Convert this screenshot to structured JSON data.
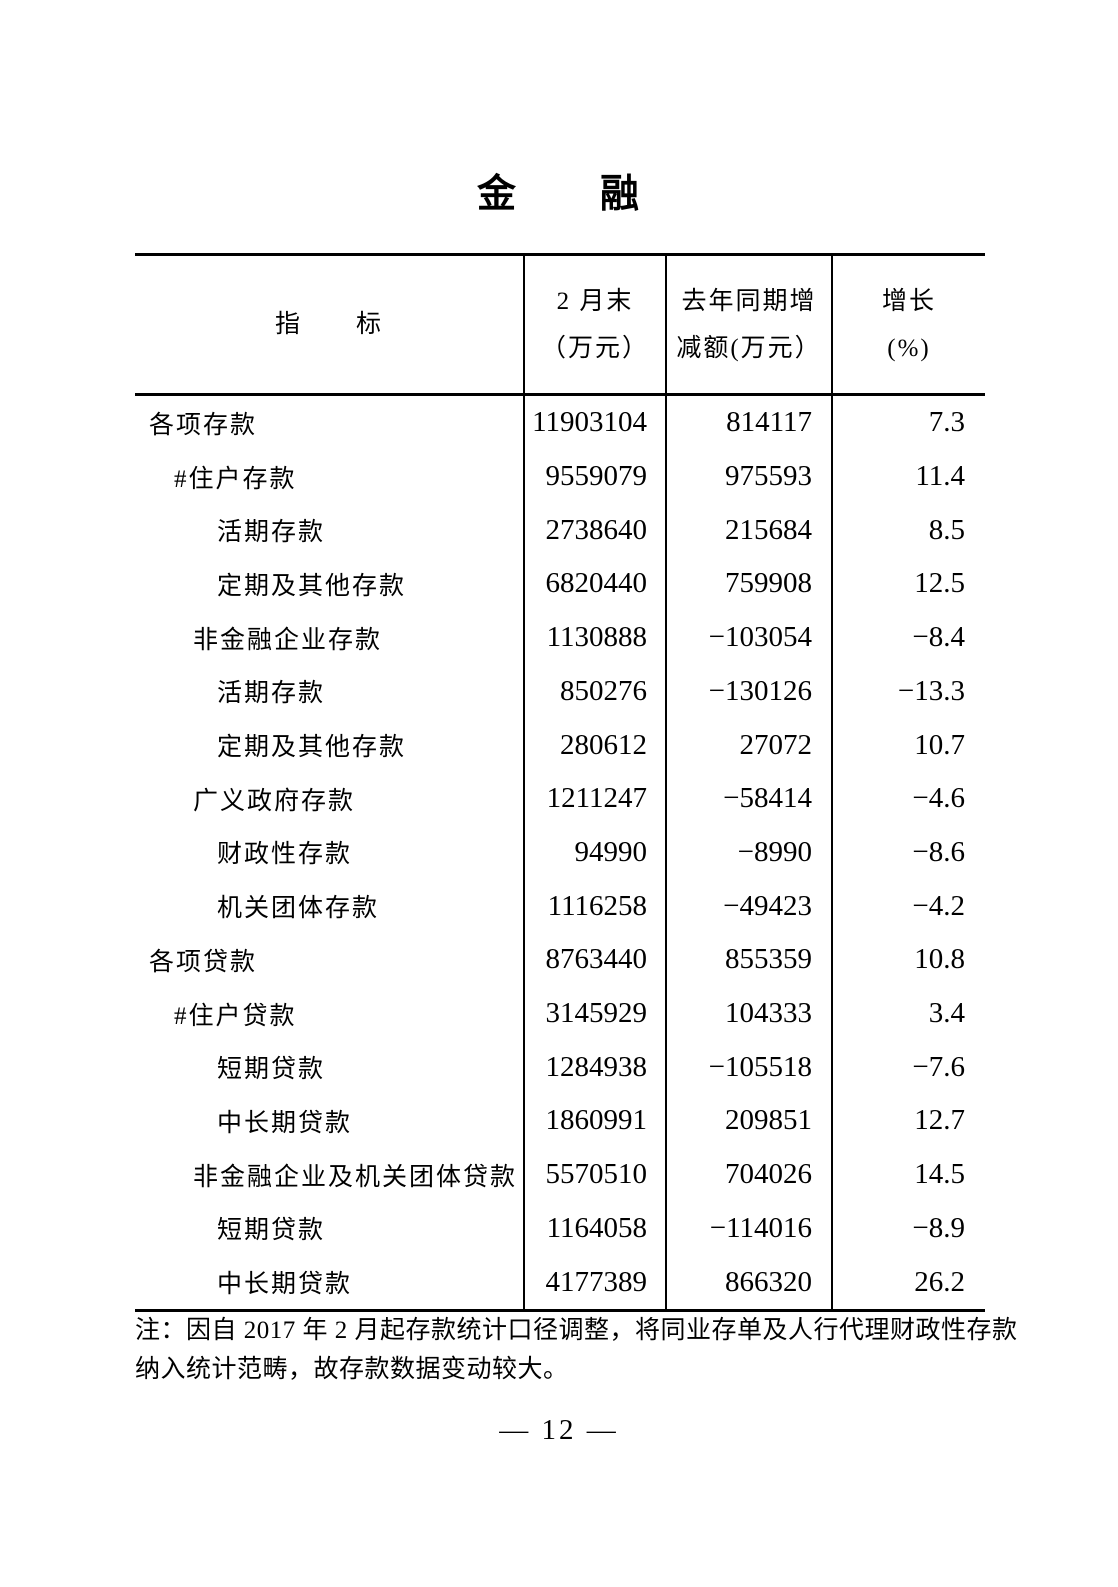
{
  "page": {
    "title": "金　　融",
    "page_number": "— 12 —"
  },
  "table": {
    "header": {
      "indicator": "指　　标",
      "col2": [
        "2 月末",
        "（万元）"
      ],
      "col3": [
        "去年同期增",
        "减额(万元）"
      ],
      "col4": [
        "增长",
        "(%)"
      ]
    },
    "rows": [
      {
        "indicator": "各项存款",
        "indent": 0,
        "value": "11903104",
        "change": "814117",
        "growth": "7.3"
      },
      {
        "indicator": "#住户存款",
        "indent": 1,
        "value": "9559079",
        "change": "975593",
        "growth": "11.4"
      },
      {
        "indicator": "活期存款",
        "indent": 3,
        "value": "2738640",
        "change": "215684",
        "growth": "8.5"
      },
      {
        "indicator": "定期及其他存款",
        "indent": 3,
        "value": "6820440",
        "change": "759908",
        "growth": "12.5"
      },
      {
        "indicator": "非金融企业存款",
        "indent": 2,
        "value": "1130888",
        "change": "−103054",
        "growth": "−8.4"
      },
      {
        "indicator": "活期存款",
        "indent": 3,
        "value": "850276",
        "change": "−130126",
        "growth": "−13.3"
      },
      {
        "indicator": "定期及其他存款",
        "indent": 3,
        "value": "280612",
        "change": "27072",
        "growth": "10.7"
      },
      {
        "indicator": "广义政府存款",
        "indent": 2,
        "value": "1211247",
        "change": "−58414",
        "growth": "−4.6"
      },
      {
        "indicator": "财政性存款",
        "indent": 3,
        "value": "94990",
        "change": "−8990",
        "growth": "−8.6"
      },
      {
        "indicator": "机关团体存款",
        "indent": 3,
        "value": "1116258",
        "change": "−49423",
        "growth": "−4.2"
      },
      {
        "indicator": "各项贷款",
        "indent": 0,
        "value": "8763440",
        "change": "855359",
        "growth": "10.8"
      },
      {
        "indicator": "#住户贷款",
        "indent": 1,
        "value": "3145929",
        "change": "104333",
        "growth": "3.4"
      },
      {
        "indicator": "短期贷款",
        "indent": 3,
        "value": "1284938",
        "change": "−105518",
        "growth": "−7.6"
      },
      {
        "indicator": "中长期贷款",
        "indent": 3,
        "value": "1860991",
        "change": "209851",
        "growth": "12.7"
      },
      {
        "indicator": "非金融企业及机关团体贷款",
        "indent": 2,
        "value": "5570510",
        "change": "704026",
        "growth": "14.5"
      },
      {
        "indicator": "短期贷款",
        "indent": 3,
        "value": "1164058",
        "change": "−114016",
        "growth": "−8.9"
      },
      {
        "indicator": "中长期贷款",
        "indent": 3,
        "value": "4177389",
        "change": "866320",
        "growth": "26.2"
      }
    ]
  },
  "note": {
    "lines": [
      "注：因自 2017 年 2 月起存款统计口径调整，将同业存单及人行代理财政性存款",
      "纳入统计范畴，故存款数据变动较大。"
    ]
  }
}
